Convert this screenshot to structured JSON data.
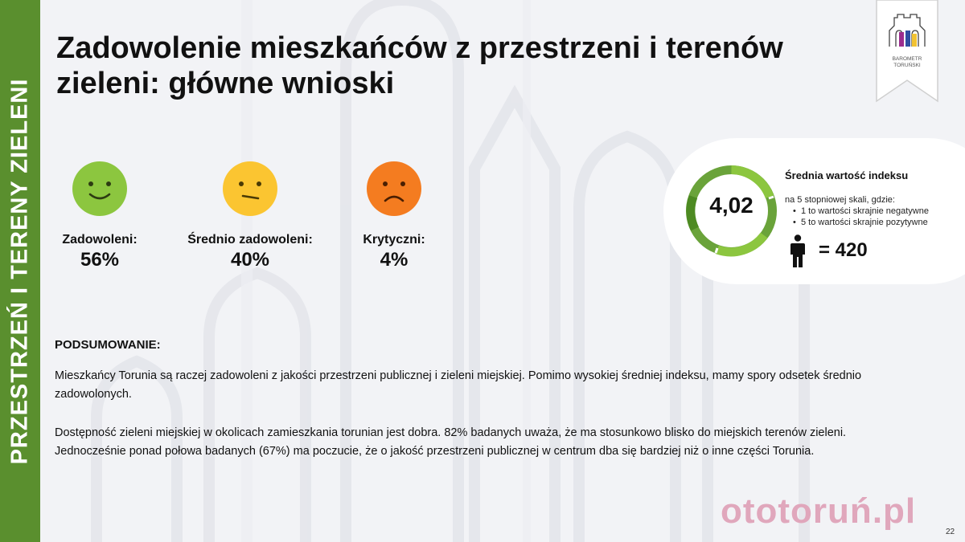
{
  "sidebar": {
    "label": "PRZESTRZEŃ I TERENY ZIELENI",
    "color": "#5a8f2e"
  },
  "title": "Zadowolenie mieszkańców z przestrzeni i terenów zieleni: główne wnioski",
  "logo": {
    "line1": "BAROMETR",
    "line2": "TORUŃSKI"
  },
  "satisfaction": [
    {
      "label": "Zadowoleni:",
      "value": "56%",
      "icon": "happy-face-icon",
      "color": "#8cc63f"
    },
    {
      "label": "Średnio zadowoleni:",
      "value": "40%",
      "icon": "neutral-face-icon",
      "color": "#fbc531"
    },
    {
      "label": "Krytyczni:",
      "value": "4%",
      "icon": "sad-face-icon",
      "color": "#f47c20"
    }
  ],
  "index": {
    "value": "4,02",
    "title": "Średnia wartość indeksu",
    "scale_note": "na 5 stopniowej skali, gdzie:",
    "bullets": [
      "1 to wartości skrajnie negatywne",
      "5 to wartości skrajnie pozytywne"
    ],
    "n": "= 420",
    "icon": "person-icon"
  },
  "summary": {
    "heading": "PODSUMOWANIE:",
    "paragraph1": "Mieszkańcy Torunia są raczej zadowoleni z jakości przestrzeni publicznej i zieleni miejskiej. Pomimo wysokiej średniej indeksu, mamy spory odsetek średnio zadowolonych.",
    "paragraph2": "Dostępność zieleni miejskiej w okolicach zamieszkania torunian jest dobra. 82% badanych uważa, że ma stosunkowo blisko do miejskich terenów zieleni. Jednocześnie ponad połowa badanych (67%) ma poczucie, że o jakość przestrzeni publicznej w centrum dba się bardziej niż o inne części Torunia."
  },
  "watermark": "ototoruń.pl",
  "page_number": "22"
}
